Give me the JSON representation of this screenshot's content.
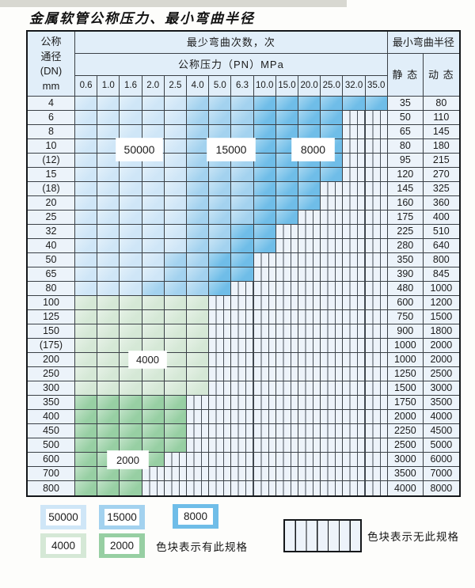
{
  "page": {
    "title": "金属软管公称压力、最小弯曲半径"
  },
  "table": {
    "header": {
      "dn_lines": [
        "公称",
        "通径",
        "(DN)",
        "mm"
      ],
      "min_bend_cycles": "最少弯曲次数，次",
      "nominal_pressure": "公称压力（PN）MPa",
      "min_bend_radius": "最小弯曲半径",
      "static_label": "静 态",
      "dynamic_label": "动 态",
      "pressures": [
        "0.6",
        "1.0",
        "1.6",
        "2.0",
        "2.5",
        "4.0",
        "5.0",
        "6.3",
        "10.0",
        "15.0",
        "20.0",
        "25.0",
        "32.0",
        "35.0"
      ]
    },
    "cell_codes": {
      "L": "50000",
      "M": "15000",
      "D": "8000",
      "G": "4000",
      "E": "2000",
      "H": "no-spec"
    },
    "rows": [
      {
        "dn": "4",
        "cells": [
          "L",
          "L",
          "L",
          "L",
          "L",
          "M",
          "M",
          "M",
          "D",
          "D",
          "D",
          "D",
          "D",
          "D"
        ],
        "static": "35",
        "dynamic": "80"
      },
      {
        "dn": "6",
        "cells": [
          "L",
          "L",
          "L",
          "L",
          "L",
          "M",
          "M",
          "M",
          "D",
          "D",
          "D",
          "D",
          "H",
          "H"
        ],
        "static": "50",
        "dynamic": "110"
      },
      {
        "dn": "8",
        "cells": [
          "L",
          "L",
          "L",
          "L",
          "L",
          "M",
          "M",
          "M",
          "D",
          "D",
          "D",
          "D",
          "H",
          "H"
        ],
        "static": "65",
        "dynamic": "145"
      },
      {
        "dn": "10",
        "cells": [
          "L",
          "L",
          "L",
          "L",
          "L",
          "M",
          "M",
          "M",
          "D",
          "D",
          "D",
          "D",
          "H",
          "H"
        ],
        "static": "80",
        "dynamic": "180"
      },
      {
        "dn": "(12)",
        "cells": [
          "L",
          "L",
          "L",
          "L",
          "L",
          "M",
          "M",
          "M",
          "D",
          "D",
          "D",
          "D",
          "H",
          "H"
        ],
        "static": "95",
        "dynamic": "215"
      },
      {
        "dn": "15",
        "cells": [
          "L",
          "L",
          "L",
          "L",
          "L",
          "M",
          "M",
          "M",
          "D",
          "D",
          "D",
          "D",
          "H",
          "H"
        ],
        "static": "120",
        "dynamic": "270"
      },
      {
        "dn": "(18)",
        "cells": [
          "L",
          "L",
          "L",
          "L",
          "L",
          "M",
          "M",
          "M",
          "D",
          "D",
          "D",
          "H",
          "H",
          "H"
        ],
        "static": "145",
        "dynamic": "325"
      },
      {
        "dn": "20",
        "cells": [
          "L",
          "L",
          "L",
          "L",
          "L",
          "M",
          "M",
          "M",
          "D",
          "D",
          "D",
          "H",
          "H",
          "H"
        ],
        "static": "160",
        "dynamic": "360"
      },
      {
        "dn": "25",
        "cells": [
          "L",
          "L",
          "L",
          "L",
          "L",
          "M",
          "M",
          "M",
          "D",
          "D",
          "H",
          "H",
          "H",
          "H"
        ],
        "static": "175",
        "dynamic": "400"
      },
      {
        "dn": "32",
        "cells": [
          "L",
          "L",
          "L",
          "L",
          "L",
          "M",
          "M",
          "D",
          "D",
          "H",
          "H",
          "H",
          "H",
          "H"
        ],
        "static": "225",
        "dynamic": "510"
      },
      {
        "dn": "40",
        "cells": [
          "L",
          "L",
          "L",
          "L",
          "L",
          "M",
          "M",
          "D",
          "D",
          "H",
          "H",
          "H",
          "H",
          "H"
        ],
        "static": "280",
        "dynamic": "640"
      },
      {
        "dn": "50",
        "cells": [
          "L",
          "L",
          "L",
          "L",
          "M",
          "M",
          "D",
          "D",
          "H",
          "H",
          "H",
          "H",
          "H",
          "H"
        ],
        "static": "350",
        "dynamic": "800"
      },
      {
        "dn": "65",
        "cells": [
          "L",
          "L",
          "L",
          "L",
          "M",
          "M",
          "D",
          "D",
          "H",
          "H",
          "H",
          "H",
          "H",
          "H"
        ],
        "static": "390",
        "dynamic": "845"
      },
      {
        "dn": "80",
        "cells": [
          "L",
          "L",
          "L",
          "M",
          "M",
          "M",
          "D",
          "H",
          "H",
          "H",
          "H",
          "H",
          "H",
          "H"
        ],
        "static": "480",
        "dynamic": "1000"
      },
      {
        "dn": "100",
        "cells": [
          "G",
          "G",
          "G",
          "G",
          "G",
          "G",
          "H",
          "H",
          "H",
          "H",
          "H",
          "H",
          "H",
          "H"
        ],
        "static": "600",
        "dynamic": "1200"
      },
      {
        "dn": "125",
        "cells": [
          "G",
          "G",
          "G",
          "G",
          "G",
          "G",
          "H",
          "H",
          "H",
          "H",
          "H",
          "H",
          "H",
          "H"
        ],
        "static": "750",
        "dynamic": "1500"
      },
      {
        "dn": "150",
        "cells": [
          "G",
          "G",
          "G",
          "G",
          "G",
          "G",
          "H",
          "H",
          "H",
          "H",
          "H",
          "H",
          "H",
          "H"
        ],
        "static": "900",
        "dynamic": "1800"
      },
      {
        "dn": "(175)",
        "cells": [
          "G",
          "G",
          "G",
          "G",
          "G",
          "G",
          "H",
          "H",
          "H",
          "H",
          "H",
          "H",
          "H",
          "H"
        ],
        "static": "1000",
        "dynamic": "2000"
      },
      {
        "dn": "200",
        "cells": [
          "G",
          "G",
          "G",
          "G",
          "G",
          "G",
          "H",
          "H",
          "H",
          "H",
          "H",
          "H",
          "H",
          "H"
        ],
        "static": "1000",
        "dynamic": "2000"
      },
      {
        "dn": "250",
        "cells": [
          "G",
          "G",
          "G",
          "G",
          "G",
          "G",
          "H",
          "H",
          "H",
          "H",
          "H",
          "H",
          "H",
          "H"
        ],
        "static": "1250",
        "dynamic": "2500"
      },
      {
        "dn": "300",
        "cells": [
          "G",
          "G",
          "G",
          "G",
          "G",
          "G",
          "H",
          "H",
          "H",
          "H",
          "H",
          "H",
          "H",
          "H"
        ],
        "static": "1500",
        "dynamic": "3000"
      },
      {
        "dn": "350",
        "cells": [
          "E",
          "E",
          "E",
          "E",
          "E",
          "H",
          "H",
          "H",
          "H",
          "H",
          "H",
          "H",
          "H",
          "H"
        ],
        "static": "1750",
        "dynamic": "3500"
      },
      {
        "dn": "400",
        "cells": [
          "E",
          "E",
          "E",
          "E",
          "E",
          "H",
          "H",
          "H",
          "H",
          "H",
          "H",
          "H",
          "H",
          "H"
        ],
        "static": "2000",
        "dynamic": "4000"
      },
      {
        "dn": "450",
        "cells": [
          "E",
          "E",
          "E",
          "E",
          "E",
          "H",
          "H",
          "H",
          "H",
          "H",
          "H",
          "H",
          "H",
          "H"
        ],
        "static": "2250",
        "dynamic": "4500"
      },
      {
        "dn": "500",
        "cells": [
          "E",
          "E",
          "E",
          "E",
          "E",
          "H",
          "H",
          "H",
          "H",
          "H",
          "H",
          "H",
          "H",
          "H"
        ],
        "static": "2500",
        "dynamic": "5000"
      },
      {
        "dn": "600",
        "cells": [
          "E",
          "E",
          "E",
          "E",
          "H",
          "H",
          "H",
          "H",
          "H",
          "H",
          "H",
          "H",
          "H",
          "H"
        ],
        "static": "3000",
        "dynamic": "6000"
      },
      {
        "dn": "700",
        "cells": [
          "E",
          "E",
          "E",
          "H",
          "H",
          "H",
          "H",
          "H",
          "H",
          "H",
          "H",
          "H",
          "H",
          "H"
        ],
        "static": "3500",
        "dynamic": "7000"
      },
      {
        "dn": "800",
        "cells": [
          "E",
          "E",
          "E",
          "H",
          "H",
          "H",
          "H",
          "H",
          "H",
          "H",
          "H",
          "H",
          "H",
          "H"
        ],
        "static": "4000",
        "dynamic": "8000"
      }
    ]
  },
  "overlay_labels": {
    "b50000": "50000",
    "b15000": "15000",
    "b8000": "8000",
    "g4000": "4000",
    "g2000": "2000"
  },
  "legend": {
    "swatches": [
      {
        "value": "50000",
        "code": "L"
      },
      {
        "value": "15000",
        "code": "M"
      },
      {
        "value": "8000",
        "code": "D"
      },
      {
        "value": "4000",
        "code": "G"
      },
      {
        "value": "2000",
        "code": "E"
      }
    ],
    "has_spec_text": "色块表示有此规格",
    "no_spec_text": "色块表示无此规格"
  },
  "colors": {
    "blue_light": "#cfe6f7",
    "blue_mid": "#a3d2ef",
    "blue_dark": "#6fbde8",
    "green_light": "#d5e8d6",
    "green_dark": "#97cfa3",
    "hatch_bg": "#edf3fa",
    "header_bg": "#e1eef9",
    "label_col_bg": "#ecf3fa"
  }
}
